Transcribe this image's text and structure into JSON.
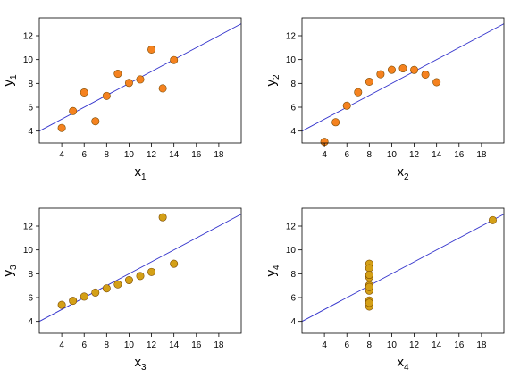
{
  "chart_data": [
    {
      "type": "scatter",
      "xlabel": "x",
      "xlabel_sub": "1",
      "ylabel": "y",
      "ylabel_sub": "1",
      "xlim": [
        2,
        20
      ],
      "ylim": [
        3,
        13.5
      ],
      "xticks": [
        4,
        6,
        8,
        10,
        12,
        14,
        16,
        18
      ],
      "yticks": [
        4,
        6,
        8,
        10,
        12
      ],
      "grid": false,
      "point_color": "#f5821f",
      "fit_line": {
        "slope": 0.5,
        "intercept": 3.0,
        "color": "#3333cc"
      },
      "points": [
        [
          10,
          8.04
        ],
        [
          8,
          6.95
        ],
        [
          13,
          7.58
        ],
        [
          9,
          8.81
        ],
        [
          11,
          8.33
        ],
        [
          14,
          9.96
        ],
        [
          6,
          7.24
        ],
        [
          4,
          4.26
        ],
        [
          12,
          10.84
        ],
        [
          7,
          4.82
        ],
        [
          5,
          5.68
        ]
      ]
    },
    {
      "type": "scatter",
      "xlabel": "x",
      "xlabel_sub": "2",
      "ylabel": "y",
      "ylabel_sub": "2",
      "xlim": [
        2,
        20
      ],
      "ylim": [
        3,
        13.5
      ],
      "xticks": [
        4,
        6,
        8,
        10,
        12,
        14,
        16,
        18
      ],
      "yticks": [
        4,
        6,
        8,
        10,
        12
      ],
      "grid": false,
      "point_color": "#f5821f",
      "fit_line": {
        "slope": 0.5,
        "intercept": 3.0,
        "color": "#3333cc"
      },
      "points": [
        [
          10,
          9.14
        ],
        [
          8,
          8.14
        ],
        [
          13,
          8.74
        ],
        [
          9,
          8.77
        ],
        [
          11,
          9.26
        ],
        [
          14,
          8.1
        ],
        [
          6,
          6.13
        ],
        [
          4,
          3.1
        ],
        [
          12,
          9.13
        ],
        [
          7,
          7.26
        ],
        [
          5,
          4.74
        ]
      ]
    },
    {
      "type": "scatter",
      "xlabel": "x",
      "xlabel_sub": "3",
      "ylabel": "y",
      "ylabel_sub": "3",
      "xlim": [
        2,
        20
      ],
      "ylim": [
        3,
        13.5
      ],
      "xticks": [
        4,
        6,
        8,
        10,
        12,
        14,
        16,
        18
      ],
      "yticks": [
        4,
        6,
        8,
        10,
        12
      ],
      "grid": false,
      "point_color": "#d4a017",
      "fit_line": {
        "slope": 0.5,
        "intercept": 3.0,
        "color": "#3333cc"
      },
      "points": [
        [
          10,
          7.46
        ],
        [
          8,
          6.77
        ],
        [
          13,
          12.74
        ],
        [
          9,
          7.11
        ],
        [
          11,
          7.81
        ],
        [
          14,
          8.84
        ],
        [
          6,
          6.08
        ],
        [
          4,
          5.39
        ],
        [
          12,
          8.15
        ],
        [
          7,
          6.42
        ],
        [
          5,
          5.73
        ]
      ]
    },
    {
      "type": "scatter",
      "xlabel": "x",
      "xlabel_sub": "4",
      "ylabel": "y",
      "ylabel_sub": "4",
      "xlim": [
        2,
        20
      ],
      "ylim": [
        3,
        13.5
      ],
      "xticks": [
        4,
        6,
        8,
        10,
        12,
        14,
        16,
        18
      ],
      "yticks": [
        4,
        6,
        8,
        10,
        12
      ],
      "grid": false,
      "point_color": "#d4a017",
      "fit_line": {
        "slope": 0.5,
        "intercept": 3.0,
        "color": "#3333cc"
      },
      "points": [
        [
          8,
          6.58
        ],
        [
          8,
          5.76
        ],
        [
          8,
          7.71
        ],
        [
          8,
          8.84
        ],
        [
          8,
          8.47
        ],
        [
          8,
          7.04
        ],
        [
          8,
          5.25
        ],
        [
          19,
          12.5
        ],
        [
          8,
          5.56
        ],
        [
          8,
          7.91
        ],
        [
          8,
          6.89
        ]
      ]
    }
  ]
}
